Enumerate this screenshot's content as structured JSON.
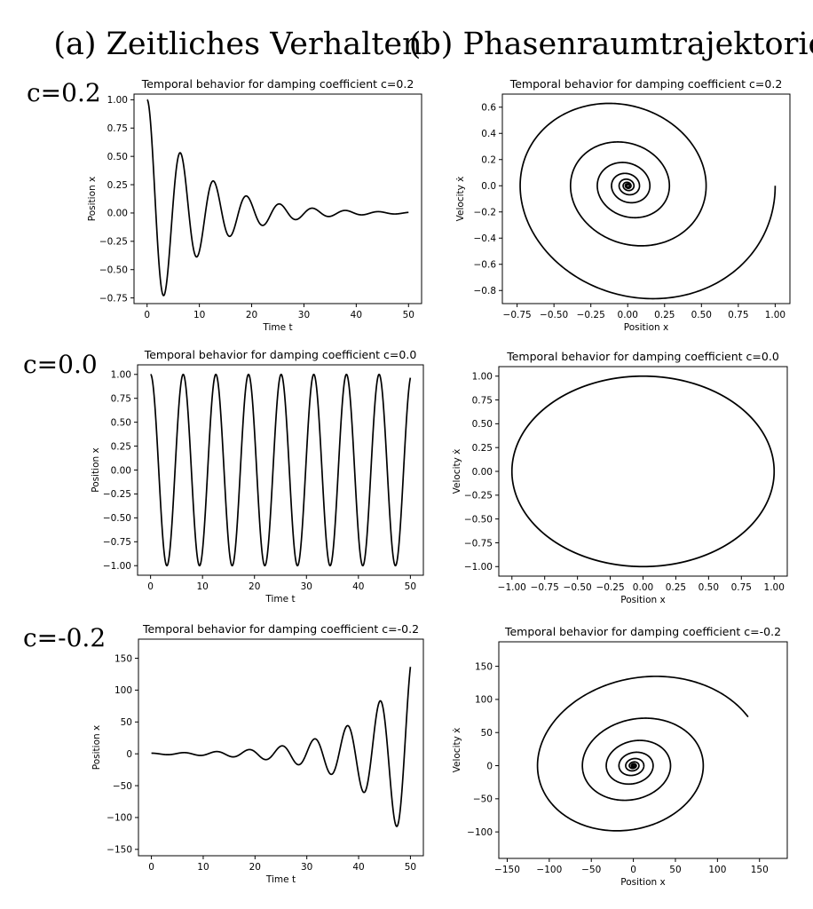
{
  "figure": {
    "col_titles": [
      "(a) Zeitliches Verhalten",
      "(b) Phasenraumtrajektorie"
    ],
    "row_labels": [
      "c=0.2",
      "c=0.0",
      "c=-0.2"
    ]
  },
  "chart_data": [
    {
      "type": "line",
      "panel": "r0c0",
      "title": "Temporal behavior for  damping coefficient c=0.2",
      "xlabel": "Time t",
      "ylabel": "Position x",
      "xlim": [
        -2.5,
        52.5
      ],
      "ylim": [
        -0.8,
        1.05
      ],
      "xticks": [
        0,
        10,
        20,
        30,
        40,
        50
      ],
      "yticks": [
        -0.75,
        -0.5,
        -0.25,
        0.0,
        0.25,
        0.5,
        0.75,
        1.0
      ],
      "xtick_labels": [
        "0",
        "10",
        "20",
        "30",
        "40",
        "50"
      ],
      "ytick_labels": [
        "−0.75",
        "−0.50",
        "−0.25",
        "0.00",
        "0.25",
        "0.50",
        "0.75",
        "1.00"
      ],
      "series": [
        {
          "model": "damped_oscillator",
          "c": 0.2,
          "omega": 1.0,
          "x0": 1.0,
          "v0": 0.0,
          "t_range": [
            0,
            50
          ],
          "view": "time"
        }
      ]
    },
    {
      "type": "line",
      "panel": "r0c1",
      "title": "Temporal behavior for  damping coefficient c=0.2",
      "xlabel": "Position x",
      "ylabel": "Velocity ẋ",
      "xlim": [
        -0.85,
        1.1
      ],
      "ylim": [
        -0.9,
        0.7
      ],
      "xticks": [
        -0.75,
        -0.5,
        -0.25,
        0.0,
        0.25,
        0.5,
        0.75,
        1.0
      ],
      "yticks": [
        -0.8,
        -0.6,
        -0.4,
        -0.2,
        0.0,
        0.2,
        0.4,
        0.6
      ],
      "xtick_labels": [
        "−0.75",
        "−0.50",
        "−0.25",
        "0.00",
        "0.25",
        "0.50",
        "0.75",
        "1.00"
      ],
      "ytick_labels": [
        "−0.8",
        "−0.6",
        "−0.4",
        "−0.2",
        "0.0",
        "0.2",
        "0.4",
        "0.6"
      ],
      "series": [
        {
          "model": "damped_oscillator",
          "c": 0.2,
          "omega": 1.0,
          "x0": 1.0,
          "v0": 0.0,
          "t_range": [
            0,
            50
          ],
          "view": "phase"
        }
      ]
    },
    {
      "type": "line",
      "panel": "r1c0",
      "title": "Temporal behavior for  damping coefficient c=0.0",
      "xlabel": "Time t",
      "ylabel": "Position x",
      "xlim": [
        -2.5,
        52.5
      ],
      "ylim": [
        -1.1,
        1.1
      ],
      "xticks": [
        0,
        10,
        20,
        30,
        40,
        50
      ],
      "yticks": [
        -1.0,
        -0.75,
        -0.5,
        -0.25,
        0.0,
        0.25,
        0.5,
        0.75,
        1.0
      ],
      "xtick_labels": [
        "0",
        "10",
        "20",
        "30",
        "40",
        "50"
      ],
      "ytick_labels": [
        "−1.00",
        "−0.75",
        "−0.50",
        "−0.25",
        "0.00",
        "0.25",
        "0.50",
        "0.75",
        "1.00"
      ],
      "series": [
        {
          "model": "damped_oscillator",
          "c": 0.0,
          "omega": 1.0,
          "x0": 1.0,
          "v0": 0.0,
          "t_range": [
            0,
            50
          ],
          "view": "time"
        }
      ]
    },
    {
      "type": "line",
      "panel": "r1c1",
      "title": "Temporal behavior for  damping coefficient c=0.0",
      "xlabel": "Position x",
      "ylabel": "Velocity ẋ",
      "xlim": [
        -1.1,
        1.1
      ],
      "ylim": [
        -1.1,
        1.1
      ],
      "xticks": [
        -1.0,
        -0.75,
        -0.5,
        -0.25,
        0.0,
        0.25,
        0.5,
        0.75,
        1.0
      ],
      "yticks": [
        -1.0,
        -0.75,
        -0.5,
        -0.25,
        0.0,
        0.25,
        0.5,
        0.75,
        1.0
      ],
      "xtick_labels": [
        "−1.00",
        "−0.75",
        "−0.50",
        "−0.25",
        "0.00",
        "0.25",
        "0.50",
        "0.75",
        "1.00"
      ],
      "ytick_labels": [
        "−1.00",
        "−0.75",
        "−0.50",
        "−0.25",
        "0.00",
        "0.25",
        "0.50",
        "0.75",
        "1.00"
      ],
      "series": [
        {
          "model": "damped_oscillator",
          "c": 0.0,
          "omega": 1.0,
          "x0": 1.0,
          "v0": 0.0,
          "t_range": [
            0,
            50
          ],
          "view": "phase"
        }
      ]
    },
    {
      "type": "line",
      "panel": "r2c0",
      "title": "Temporal behavior for  damping coefficient c=-0.2",
      "xlabel": "Time t",
      "ylabel": "Position x",
      "xlim": [
        -2.5,
        52.5
      ],
      "ylim": [
        -160,
        180
      ],
      "xticks": [
        0,
        10,
        20,
        30,
        40,
        50
      ],
      "yticks": [
        -150,
        -100,
        -50,
        0,
        50,
        100,
        150
      ],
      "xtick_labels": [
        "0",
        "10",
        "20",
        "30",
        "40",
        "50"
      ],
      "ytick_labels": [
        "−150",
        "−100",
        "−50",
        "0",
        "50",
        "100",
        "150"
      ],
      "series": [
        {
          "model": "damped_oscillator",
          "c": -0.2,
          "omega": 1.0,
          "x0": 1.0,
          "v0": 0.0,
          "t_range": [
            0,
            50
          ],
          "view": "time"
        }
      ]
    },
    {
      "type": "line",
      "panel": "r2c1",
      "title": "Temporal behavior for  damping coefficient c=-0.2",
      "xlabel": "Position x",
      "ylabel": "Velocity ẋ",
      "xlim": [
        -160,
        183
      ],
      "ylim": [
        -140,
        187
      ],
      "xticks": [
        -150,
        -100,
        -50,
        0,
        50,
        100,
        150
      ],
      "yticks": [
        -100,
        -50,
        0,
        50,
        100,
        150
      ],
      "xtick_labels": [
        "−150",
        "−100",
        "−50",
        "0",
        "50",
        "100",
        "150"
      ],
      "ytick_labels": [
        "−100",
        "−50",
        "0",
        "50",
        "100",
        "150"
      ],
      "series": [
        {
          "model": "damped_oscillator",
          "c": -0.2,
          "omega": 1.0,
          "x0": 1.0,
          "v0": 0.0,
          "t_range": [
            0,
            50
          ],
          "view": "phase"
        }
      ]
    }
  ]
}
